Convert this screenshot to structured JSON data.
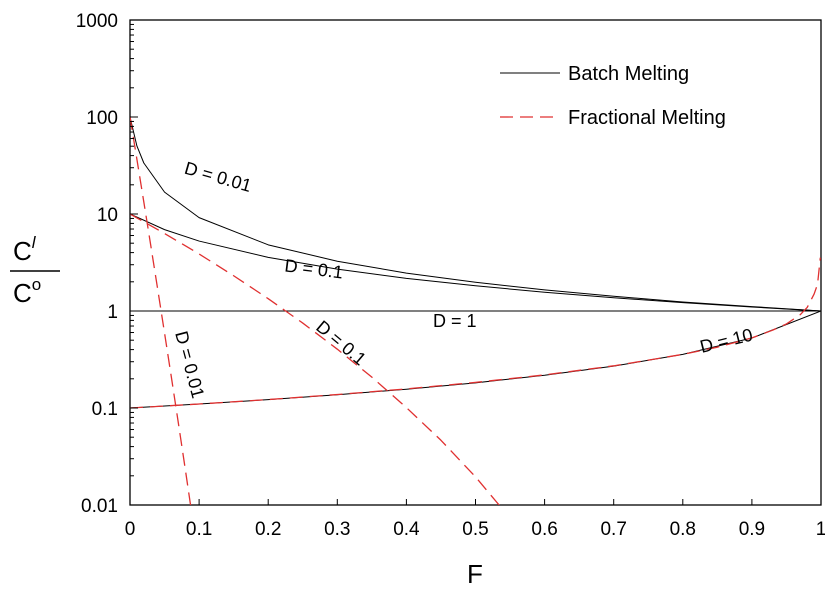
{
  "chart_data": {
    "type": "line",
    "title": "",
    "xlabel": "F",
    "ylabel": {
      "numerator": "C",
      "numerator_sup": "l",
      "denominator": "C",
      "denominator_sup": "o"
    },
    "xlim": [
      0,
      1
    ],
    "ylim": [
      0.01,
      1000
    ],
    "yscale": "log",
    "grid": false,
    "x_ticks": [
      {
        "value": 0,
        "label": "0"
      },
      {
        "value": 0.1,
        "label": "0.1"
      },
      {
        "value": 0.2,
        "label": "0.2"
      },
      {
        "value": 0.3,
        "label": "0.3"
      },
      {
        "value": 0.4,
        "label": "0.4"
      },
      {
        "value": 0.5,
        "label": "0.5"
      },
      {
        "value": 0.6,
        "label": "0.6"
      },
      {
        "value": 0.7,
        "label": "0.7"
      },
      {
        "value": 0.8,
        "label": "0.8"
      },
      {
        "value": 0.9,
        "label": "0.9"
      },
      {
        "value": 1,
        "label": "1"
      }
    ],
    "y_ticks": [
      {
        "value": 0.01,
        "label": "0.01"
      },
      {
        "value": 0.1,
        "label": "0.1"
      },
      {
        "value": 1,
        "label": "1"
      },
      {
        "value": 10,
        "label": "10"
      },
      {
        "value": 100,
        "label": "100"
      },
      {
        "value": 1000,
        "label": "1000"
      }
    ],
    "legend": {
      "placement": "top-right",
      "entries": [
        {
          "label": "Batch Melting",
          "style": "solid",
          "color": "#000000"
        },
        {
          "label": "Fractional Melting",
          "style": "dashed",
          "color": "#e03030"
        }
      ]
    },
    "series": [
      {
        "group": "Batch Melting",
        "D": 0.01,
        "label": "D = 0.01",
        "x": [
          0,
          0.01,
          0.02,
          0.05,
          0.1,
          0.2,
          0.3,
          0.4,
          0.5,
          0.6,
          0.7,
          0.8,
          0.9,
          1
        ],
        "y": [
          100,
          50.25,
          33.56,
          16.81,
          9.17,
          4.81,
          3.26,
          2.46,
          1.98,
          1.65,
          1.42,
          1.24,
          1.11,
          1
        ]
      },
      {
        "group": "Batch Melting",
        "D": 0.1,
        "label": "D = 0.1",
        "x": [
          0,
          0.05,
          0.1,
          0.2,
          0.3,
          0.4,
          0.5,
          0.6,
          0.7,
          0.8,
          0.9,
          1
        ],
        "y": [
          10,
          6.9,
          5.26,
          3.57,
          2.7,
          2.17,
          1.82,
          1.56,
          1.37,
          1.22,
          1.1,
          1
        ]
      },
      {
        "group": "Batch Melting",
        "D": 1,
        "label": "D = 1",
        "x": [
          0,
          1
        ],
        "y": [
          1,
          1
        ]
      },
      {
        "group": "Batch Melting",
        "D": 10,
        "label": "D = 10",
        "x": [
          0,
          0.1,
          0.2,
          0.3,
          0.4,
          0.5,
          0.6,
          0.7,
          0.8,
          0.9,
          1
        ],
        "y": [
          0.1,
          0.1099,
          0.122,
          0.137,
          0.1563,
          0.1818,
          0.2174,
          0.2703,
          0.3571,
          0.5263,
          1
        ]
      },
      {
        "group": "Fractional Melting",
        "D": 0.01,
        "label": "D = 0.01",
        "x": [
          0,
          0.01,
          0.02,
          0.03,
          0.04,
          0.05,
          0.06,
          0.07,
          0.08,
          0.09
        ],
        "y": [
          100,
          36.6,
          13.3,
          4.76,
          1.69,
          0.592,
          0.205,
          0.0698,
          0.0234,
          0.00765
        ]
      },
      {
        "group": "Fractional Melting",
        "D": 0.1,
        "label": "D = 0.1",
        "x": [
          0,
          0.05,
          0.1,
          0.15,
          0.2,
          0.25,
          0.3,
          0.35,
          0.4,
          0.45,
          0.5,
          0.55
        ],
        "y": [
          10,
          6.3,
          3.87,
          2.31,
          1.34,
          0.751,
          0.404,
          0.208,
          0.101,
          0.0465,
          0.0195,
          0.00733
        ]
      },
      {
        "group": "Fractional Melting",
        "D": 10,
        "label": "",
        "x": [
          0,
          0.1,
          0.2,
          0.3,
          0.4,
          0.5,
          0.6,
          0.7,
          0.8,
          0.85,
          0.9,
          0.93,
          0.95,
          0.97,
          0.98,
          0.99,
          0.995,
          0.999
        ],
        "y": [
          0.1,
          0.1099,
          0.1222,
          0.1377,
          0.1574,
          0.1837,
          0.2196,
          0.2721,
          0.3572,
          0.4237,
          0.5278,
          0.634,
          0.736,
          0.9172,
          1.0874,
          1.495,
          1.886,
          3.548
        ]
      }
    ],
    "annotations": [
      {
        "text": "D = 0.01",
        "x": 0.125,
        "y": 21,
        "rotate": 16
      },
      {
        "text": "D = 0.1",
        "x": 0.265,
        "y": 2.35,
        "rotate": 7
      },
      {
        "text": "D = 1",
        "x": 0.47,
        "y": 0.68,
        "rotate": 0
      },
      {
        "text": "D = 0.01",
        "x": 0.078,
        "y": 0.27,
        "rotate": 75
      },
      {
        "text": "D = 0.1",
        "x": 0.3,
        "y": 0.42,
        "rotate": 40
      },
      {
        "text": "D = 10",
        "x": 0.865,
        "y": 0.43,
        "rotate": -14
      }
    ]
  }
}
